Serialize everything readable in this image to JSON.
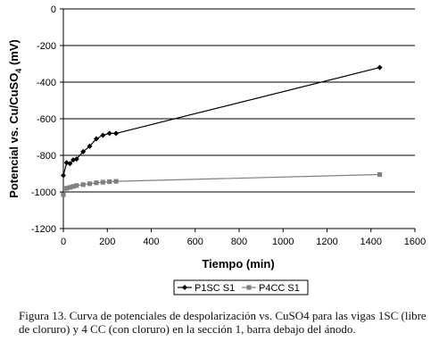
{
  "chart_data": {
    "type": "line",
    "xlabel": "Tiempo (min)",
    "ylabel_prefix": "Potencial vs. Cu/CuSO",
    "ylabel_sub": "4",
    "ylabel_suffix": " (mV)",
    "xlim": [
      0,
      1600
    ],
    "ylim": [
      -1200,
      0
    ],
    "x_ticks": [
      0,
      200,
      400,
      600,
      800,
      1000,
      1200,
      1400,
      1600
    ],
    "y_ticks": [
      0,
      -200,
      -400,
      -600,
      -800,
      -1000,
      -1200
    ],
    "grid": "horizontal",
    "legend_position": "bottom-center",
    "series": [
      {
        "name": "P1SC S1",
        "color": "#000000",
        "marker": "diamond",
        "points": [
          [
            0,
            -910
          ],
          [
            15,
            -840
          ],
          [
            30,
            -845
          ],
          [
            45,
            -825
          ],
          [
            60,
            -820
          ],
          [
            90,
            -780
          ],
          [
            120,
            -750
          ],
          [
            150,
            -710
          ],
          [
            180,
            -690
          ],
          [
            210,
            -680
          ],
          [
            240,
            -680
          ],
          [
            1440,
            -320
          ]
        ]
      },
      {
        "name": "P4CC S1",
        "color": "#808080",
        "marker": "square",
        "points": [
          [
            0,
            -1015
          ],
          [
            15,
            -980
          ],
          [
            30,
            -975
          ],
          [
            45,
            -970
          ],
          [
            60,
            -965
          ],
          [
            90,
            -960
          ],
          [
            120,
            -955
          ],
          [
            150,
            -950
          ],
          [
            180,
            -947
          ],
          [
            210,
            -944
          ],
          [
            240,
            -942
          ],
          [
            1440,
            -905
          ]
        ]
      }
    ]
  },
  "caption": "Figura 13. Curva de potenciales de despolarización vs. CuSO4 para las vigas 1SC (libre de cloruro) y 4 CC (con cloruro) en la sección 1, barra debajo del ánodo."
}
